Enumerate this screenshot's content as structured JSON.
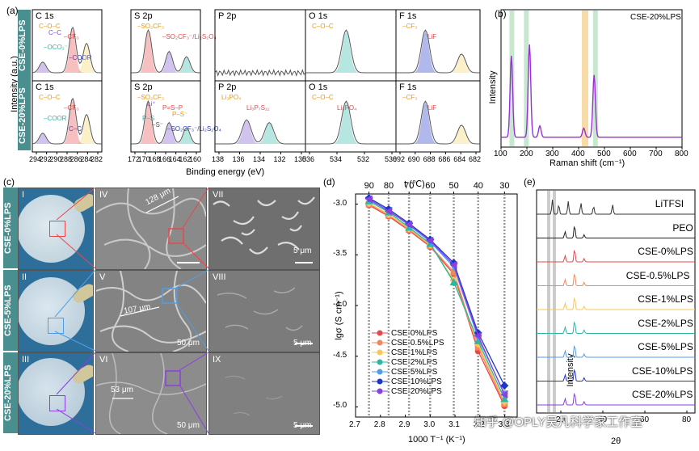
{
  "panel_labels": {
    "a": "(a)",
    "b": "(b)",
    "c": "(c)",
    "d": "(d)",
    "e": "(e)"
  },
  "xps": {
    "ylabel": "Intensity (a.u.)",
    "xlabel": "Binding energy (eV)",
    "row_labels": [
      "CSE-0%LPS",
      "CSE-20%LPS"
    ],
    "subpanels": [
      {
        "title": "C 1s",
        "ticks": [
          "294",
          "292",
          "290",
          "288",
          "286",
          "284",
          "282"
        ],
        "row1_annotations": [
          "C–O–C",
          "–CF₃",
          "–OCO₂⁻",
          "–COOR",
          "C–C"
        ],
        "row2_annotations": [
          "C–O–C",
          "–CF₃",
          "–COOR",
          "C–C"
        ]
      },
      {
        "title": "S 2p",
        "ticks": [
          "172",
          "170",
          "168",
          "166",
          "164",
          "162",
          "160"
        ],
        "row1_annotations": [
          "–SO₂CF₃",
          "–SO₂CF₃⁻/Li₂S₂O₄"
        ],
        "row2_annotations": [
          "–SO₂CF₃",
          "P=S–P",
          "P–S",
          "–SO₂CF₃⁻/Li₂S₂O₄",
          "Li⁺",
          "P–S⁻",
          "–S⁻"
        ]
      },
      {
        "title": "P 2p",
        "ticks": [
          "138",
          "136",
          "134",
          "132",
          "130"
        ],
        "row1_annotations": [],
        "row2_annotations": [
          "Li₃PO₄",
          "Li₃P₇S₁₁"
        ]
      },
      {
        "title": "O 1s",
        "ticks": [
          "536",
          "534",
          "532",
          "530"
        ],
        "row1_annotations": [
          "C–O–C"
        ],
        "row2_annotations": [
          "C–O–C",
          "Li₃PO₄"
        ]
      },
      {
        "title": "F 1s",
        "ticks": [
          "692",
          "690",
          "688",
          "686",
          "684",
          "682"
        ],
        "row1_annotations": [
          "–CF₃",
          "LiF"
        ],
        "row2_annotations": [
          "–CF₃",
          "LiF"
        ]
      }
    ]
  },
  "raman": {
    "title": "CSE-20%LPS",
    "xlabel": "Raman shift (cm⁻¹)",
    "ylabel": "Intensity",
    "xticks": [
      "100",
      "200",
      "300",
      "400",
      "500",
      "600",
      "700",
      "800"
    ]
  },
  "sem": {
    "row_labels": [
      "CSE-0%LPS",
      "CSE-5%LPS",
      "CSE-20%LPS"
    ],
    "numerals": [
      "I",
      "II",
      "III",
      "IV",
      "V",
      "VI",
      "VII",
      "VIII",
      "IX"
    ],
    "measurements": [
      "128 μm",
      "107 μm",
      "53 μm"
    ],
    "scalebars": [
      "50 μm",
      "5 μm",
      "50 μm",
      "5 μm",
      "50 μm",
      "5 μm"
    ]
  },
  "conductivity": {
    "top_axis_label": "t (℃)",
    "top_ticks": [
      "90",
      "80",
      "70",
      "60",
      "50",
      "40",
      "30"
    ],
    "xlabel": "1000 T⁻¹ (K⁻¹)",
    "ylabel": "lgσ (S cm⁻¹)",
    "xticks": [
      "2.7",
      "2.8",
      "2.9",
      "3.0",
      "3.1",
      "3.2",
      "3.3"
    ],
    "yticks": [
      "-3.0",
      "-3.5",
      "-4.0",
      "-4.5",
      "-5.0"
    ]
  },
  "chart_data": {
    "type": "line",
    "title": "",
    "xlabel": "1000 T⁻¹ (K⁻¹)",
    "ylabel": "lgσ (S cm⁻¹)",
    "xlim": [
      2.7,
      3.35
    ],
    "ylim": [
      -5.1,
      -2.9
    ],
    "x": [
      2.754,
      2.833,
      2.915,
      3.0,
      3.095,
      3.193,
      3.299
    ],
    "series": [
      {
        "name": "CSE-0%LPS",
        "color": "#e8474b",
        "marker": "circle",
        "values": [
          -3.01,
          -3.12,
          -3.26,
          -3.42,
          -3.69,
          -4.45,
          -4.99
        ]
      },
      {
        "name": "CSE-0.5%LPS",
        "color": "#f08a5d",
        "marker": "square",
        "values": [
          -3.0,
          -3.11,
          -3.25,
          -3.41,
          -3.67,
          -4.41,
          -4.97
        ]
      },
      {
        "name": "CSE-1%LPS",
        "color": "#f5c85a",
        "marker": "diamond",
        "values": [
          -2.99,
          -3.1,
          -3.24,
          -3.4,
          -3.75,
          -4.38,
          -4.95
        ]
      },
      {
        "name": "CSE-2%LPS",
        "color": "#2bb6a5",
        "marker": "triangle-up",
        "values": [
          -2.97,
          -3.08,
          -3.23,
          -3.39,
          -3.77,
          -4.35,
          -4.92
        ]
      },
      {
        "name": "CSE-5%LPS",
        "color": "#4f9ee8",
        "marker": "triangle-down",
        "values": [
          -2.96,
          -3.06,
          -3.21,
          -3.37,
          -3.62,
          -4.32,
          -4.87
        ]
      },
      {
        "name": "CSE-10%LPS",
        "color": "#1f35c8",
        "marker": "diamond",
        "values": [
          -2.94,
          -3.05,
          -3.19,
          -3.35,
          -3.58,
          -4.27,
          -4.79
        ]
      },
      {
        "name": "CSE-20%LPS",
        "color": "#8a3fe0",
        "marker": "triangle-left",
        "values": [
          -2.95,
          -3.07,
          -3.2,
          -3.36,
          -3.6,
          -4.3,
          -4.88
        ]
      }
    ]
  },
  "xrd": {
    "ylabel": "Intensity",
    "xlabel": "2θ",
    "xticks": [
      "20",
      "40",
      "60",
      "80"
    ],
    "traces": [
      {
        "name": "LiTFSI",
        "color": "#333333"
      },
      {
        "name": "PEO",
        "color": "#222222"
      },
      {
        "name": "CSE-0%LPS",
        "color": "#e8474b"
      },
      {
        "name": "CSE-0.5%LPS",
        "color": "#f08a5d"
      },
      {
        "name": "CSE-1%LPS",
        "color": "#f5c85a"
      },
      {
        "name": "CSE-2%LPS",
        "color": "#2bb6a5"
      },
      {
        "name": "CSE-5%LPS",
        "color": "#4f9ee8"
      },
      {
        "name": "CSE-10%LPS",
        "color": "#1f35c8"
      },
      {
        "name": "CSE-20%LPS",
        "color": "#8a3fe0"
      }
    ]
  },
  "watermark": "知乎 @OPLY吴凡科学家工作室"
}
